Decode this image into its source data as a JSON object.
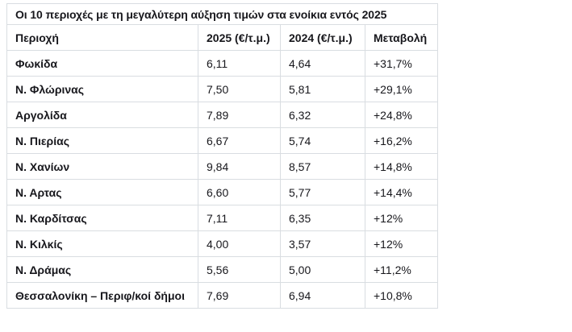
{
  "colors": {
    "background": "#ffffff",
    "border": "#d9dde1",
    "text": "#17171c"
  },
  "table": {
    "title": "Οι 10 περιοχές με τη μεγαλύτερη αύξηση τιμών στα ενοίκια εντός 2025",
    "columns": [
      "Περιοχή",
      "2025 (€/τ.μ.)",
      "2024 (€/τ.μ.)",
      "Μεταβολή"
    ],
    "rows": [
      {
        "region": "Φωκίδα",
        "price_2025": "6,11",
        "price_2024": "4,64",
        "change": "+31,7%"
      },
      {
        "region": "Ν. Φλώρινας",
        "price_2025": "7,50",
        "price_2024": "5,81",
        "change": "+29,1%"
      },
      {
        "region": "Αργολίδα",
        "price_2025": "7,89",
        "price_2024": "6,32",
        "change": "+24,8%"
      },
      {
        "region": "Ν. Πιερίας",
        "price_2025": "6,67",
        "price_2024": "5,74",
        "change": "+16,2%"
      },
      {
        "region": "Ν. Χανίων",
        "price_2025": "9,84",
        "price_2024": "8,57",
        "change": "+14,8%"
      },
      {
        "region": "Ν. Αρτας",
        "price_2025": "6,60",
        "price_2024": "5,77",
        "change": "+14,4%"
      },
      {
        "region": "Ν. Καρδίτσας",
        "price_2025": "7,11",
        "price_2024": "6,35",
        "change": "+12%"
      },
      {
        "region": "Ν. Κιλκίς",
        "price_2025": "4,00",
        "price_2024": "3,57",
        "change": "+12%"
      },
      {
        "region": "Ν. Δράμας",
        "price_2025": "5,56",
        "price_2024": "5,00",
        "change": "+11,2%"
      },
      {
        "region": "Θεσσαλονίκη – Περιφ/κοί δήμοι",
        "price_2025": "7,69",
        "price_2024": "6,94",
        "change": "+10,8%"
      }
    ]
  },
  "chart_data": {
    "type": "table",
    "title": "Οι 10 περιοχές με τη μεγαλύτερη αύξηση τιμών στα ενοίκια εντός 2025",
    "columns": [
      "Περιοχή",
      "2025 (€/τ.μ.)",
      "2024 (€/τ.μ.)",
      "Μεταβολή"
    ],
    "rows": [
      [
        "Φωκίδα",
        "6,11",
        "4,64",
        "+31,7%"
      ],
      [
        "Ν. Φλώρινας",
        "7,50",
        "5,81",
        "+29,1%"
      ],
      [
        "Αργολίδα",
        "7,89",
        "6,32",
        "+24,8%"
      ],
      [
        "Ν. Πιερίας",
        "6,67",
        "5,74",
        "+16,2%"
      ],
      [
        "Ν. Χανίων",
        "9,84",
        "8,57",
        "+14,8%"
      ],
      [
        "Ν. Αρτας",
        "6,60",
        "5,77",
        "+14,4%"
      ],
      [
        "Ν. Καρδίτσας",
        "7,11",
        "6,35",
        "+12%"
      ],
      [
        "Ν. Κιλκίς",
        "4,00",
        "3,57",
        "+12%"
      ],
      [
        "Ν. Δράμας",
        "5,56",
        "5,00",
        "+11,2%"
      ],
      [
        "Θεσσαλονίκη – Περιφ/κοί δήμοι",
        "7,69",
        "6,94",
        "+10,8%"
      ]
    ],
    "series": [
      {
        "name": "2025 (€/τ.μ.)",
        "values": [
          6.11,
          7.5,
          7.89,
          6.67,
          9.84,
          6.6,
          7.11,
          4.0,
          5.56,
          7.69
        ]
      },
      {
        "name": "2024 (€/τ.μ.)",
        "values": [
          4.64,
          5.81,
          6.32,
          5.74,
          8.57,
          5.77,
          6.35,
          3.57,
          5.0,
          6.94
        ]
      },
      {
        "name": "Μεταβολή (%)",
        "values": [
          31.7,
          29.1,
          24.8,
          16.2,
          14.8,
          14.4,
          12,
          12,
          11.2,
          10.8
        ]
      }
    ],
    "categories": [
      "Φωκίδα",
      "Ν. Φλώρινας",
      "Αργολίδα",
      "Ν. Πιερίας",
      "Ν. Χανίων",
      "Ν. Αρτας",
      "Ν. Καρδίτσας",
      "Ν. Κιλκίς",
      "Ν. Δράμας",
      "Θεσσαλονίκη – Περιφ/κοί δήμοι"
    ],
    "legend_position": "none",
    "grid": true
  }
}
